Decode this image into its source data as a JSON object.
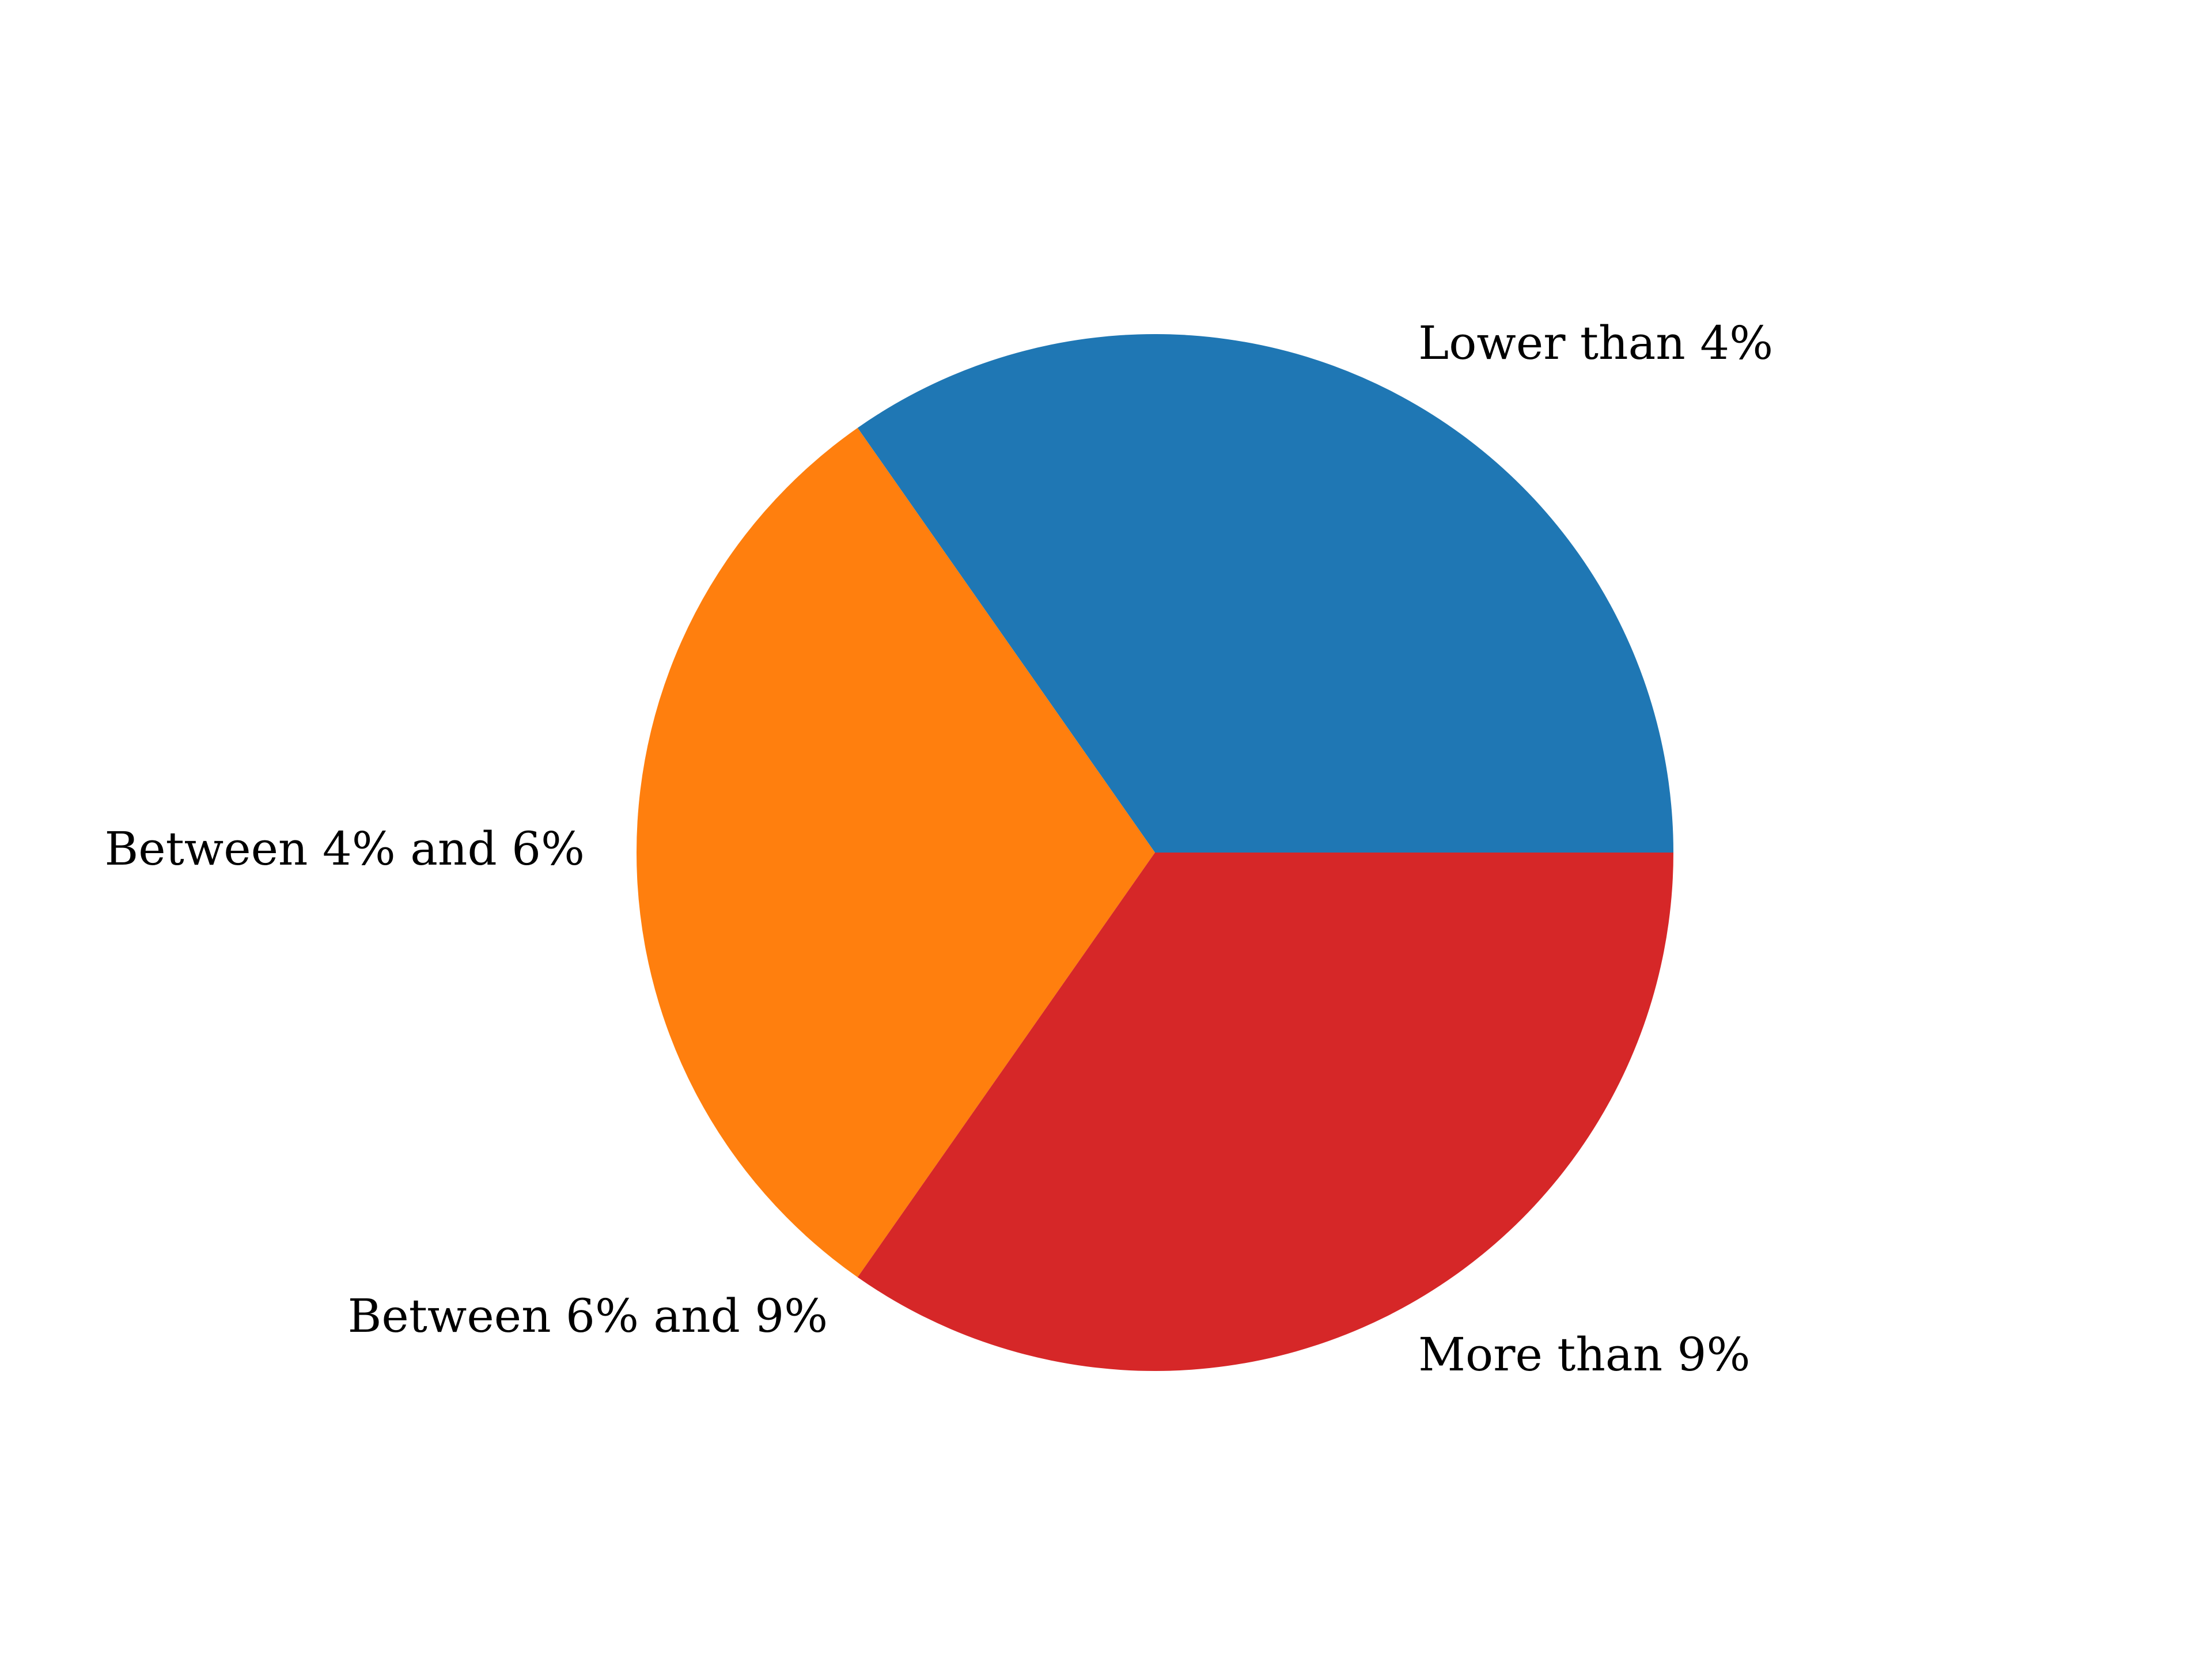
{
  "chart_data": {
    "type": "pie",
    "title": "",
    "start_angle_deg": 0,
    "direction": "counterclockwise",
    "slices": [
      {
        "label": "Lower than 4%",
        "value": 1,
        "color": "#1f77b4"
      },
      {
        "label": "Between 4% and 6%",
        "value": 0.88,
        "color": "#ff7f0e"
      },
      {
        "label": "Between 6% and 9%",
        "value": 0,
        "color": "#2ca02c"
      },
      {
        "label": "More than 9%",
        "value": 1.0,
        "color": "#d62728"
      }
    ]
  }
}
